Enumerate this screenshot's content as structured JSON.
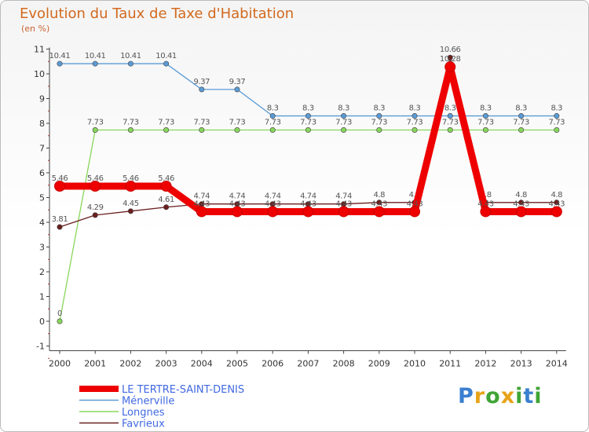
{
  "chart_data": {
    "type": "line",
    "title": "Evolution du Taux de Taxe d'Habitation",
    "subtitle": "(en %)",
    "x": [
      "2000",
      "2001",
      "2002",
      "2003",
      "2004",
      "2005",
      "2006",
      "2007",
      "2008",
      "2009",
      "2010",
      "2011",
      "2012",
      "2013",
      "2014"
    ],
    "ylim": [
      -1,
      11
    ],
    "yticks": [
      "-1",
      "0",
      "1",
      "2",
      "3",
      "4",
      "5",
      "6",
      "7",
      "8",
      "9",
      "10",
      "11"
    ],
    "grid": false,
    "legend_position": "bottom-left",
    "series": [
      {
        "name": "Ménerville",
        "color": "#5b9bd5",
        "values": [
          10.41,
          10.41,
          10.41,
          10.41,
          9.37,
          9.37,
          8.3,
          8.3,
          8.3,
          8.3,
          8.3,
          8.3,
          8.3,
          8.3,
          8.3
        ],
        "labels": [
          "10.41",
          "10.41",
          "10.41",
          "10.41",
          "9.37",
          "9.37",
          "8.3",
          "8.3",
          "8.3",
          "8.3",
          "8.3",
          "8.3",
          "8.3",
          "8.3",
          "8.3"
        ]
      },
      {
        "name": "Longnes",
        "color": "#88d75b",
        "values": [
          0,
          7.73,
          7.73,
          7.73,
          7.73,
          7.73,
          7.73,
          7.73,
          7.73,
          7.73,
          7.73,
          7.73,
          7.73,
          7.73,
          7.73
        ],
        "labels": [
          "0",
          "7.73",
          "7.73",
          "7.73",
          "7.73",
          "7.73",
          "7.73",
          "7.73",
          "7.73",
          "7.73",
          "7.73",
          "7.73",
          "7.73",
          "7.73",
          "7.73"
        ]
      },
      {
        "name": "Favrieux",
        "color": "#6b1e1e",
        "values": [
          3.81,
          4.29,
          4.45,
          4.61,
          4.74,
          4.74,
          4.74,
          4.74,
          4.74,
          4.8,
          4.8,
          10.66,
          4.8,
          4.8,
          4.8
        ],
        "labels": [
          "3.81",
          "4.29",
          "4.45",
          "4.61",
          "4.74",
          "4.74",
          "4.74",
          "4.74",
          "4.74",
          "4.8",
          "4.8",
          "10.66",
          "4.8",
          "4.8",
          "4.8"
        ]
      },
      {
        "name": "LE TERTRE-SAINT-DENIS",
        "color": "#ee0000",
        "values": [
          5.46,
          5.46,
          5.46,
          5.46,
          4.43,
          4.43,
          4.43,
          4.43,
          4.43,
          4.43,
          4.43,
          10.28,
          4.43,
          4.43,
          4.43
        ],
        "labels": [
          "5.46",
          "5.46",
          "5.46",
          "5.46",
          "4.43",
          "4.43",
          "4.43",
          "4.43",
          "4.43",
          "4.43",
          "4.43",
          "10.28",
          "4.43",
          "4.43",
          "4.43"
        ]
      }
    ],
    "legend": [
      {
        "name": "LE TERTRE-SAINT-DENIS",
        "color": "#ee0000"
      },
      {
        "name": "Ménerville",
        "color": "#5b9bd5"
      },
      {
        "name": "Longnes",
        "color": "#88d75b"
      },
      {
        "name": "Favrieux",
        "color": "#6b1e1e"
      }
    ]
  },
  "logo": {
    "letters": [
      "P",
      "r",
      "o",
      "x",
      "i",
      "t",
      "i"
    ],
    "colors": [
      "#3a7fd0",
      "#e8a317",
      "#3fa535",
      "#e8a317",
      "#3fa535",
      "#3a7fd0",
      "#3fa535"
    ]
  }
}
